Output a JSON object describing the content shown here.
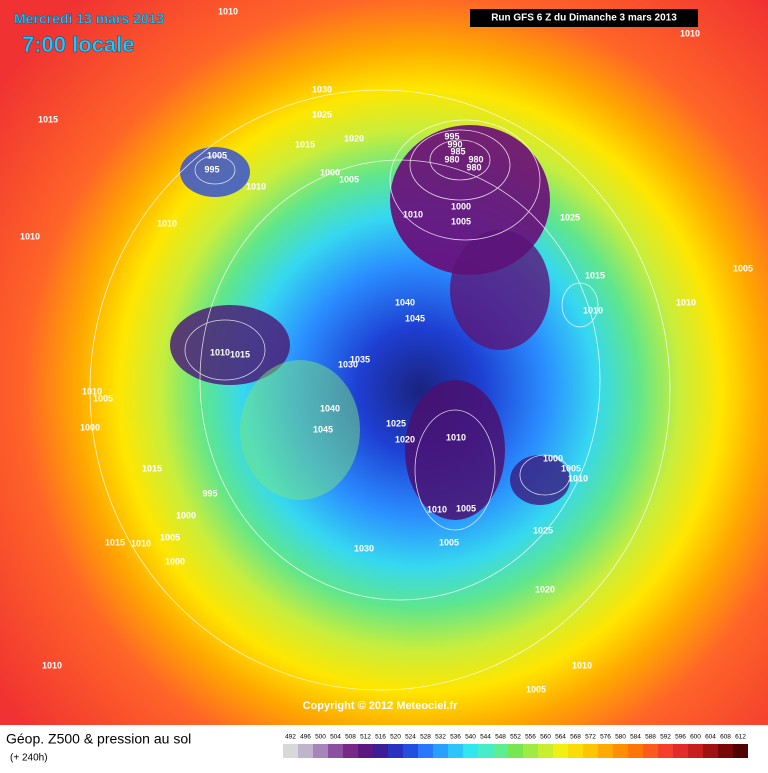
{
  "header": {
    "date": "Mercredi 13 mars 2013",
    "time": "7:00 locale",
    "run": "Run GFS 6 Z du Dimanche 3 mars 2013"
  },
  "copyright": "Copyright © 2012 Meteociel.fr",
  "footer": {
    "title": "Géop. Z500 & pression au sol",
    "lead": "(+ 240h)"
  },
  "scale": [
    "492",
    "496",
    "500",
    "504",
    "508",
    "512",
    "516",
    "520",
    "524",
    "528",
    "532",
    "536",
    "540",
    "544",
    "548",
    "552",
    "556",
    "560",
    "564",
    "568",
    "572",
    "576",
    "580",
    "584",
    "588",
    "592",
    "596",
    "600",
    "604",
    "608",
    "612"
  ],
  "isobar_labels": [
    "1010",
    "1010",
    "1015",
    "1030",
    "1025",
    "1020",
    "1015",
    "1005",
    "995",
    "1010",
    "1000",
    "1005",
    "995",
    "990",
    "985",
    "980",
    "980",
    "980",
    "1000",
    "1005",
    "1010",
    "1025",
    "1010",
    "1010",
    "1015",
    "1010",
    "1005",
    "1010",
    "1040",
    "1045",
    "1010",
    "1015",
    "1035",
    "1030",
    "1010",
    "1005",
    "1040",
    "1045",
    "1025",
    "1020",
    "1010",
    "1000",
    "1000",
    "1005",
    "1010",
    "1015",
    "995",
    "1010",
    "1005",
    "1000",
    "1005",
    "1015",
    "1010",
    "1025",
    "1005",
    "1000",
    "1030",
    "1020",
    "1010",
    "1010",
    "1005"
  ]
}
